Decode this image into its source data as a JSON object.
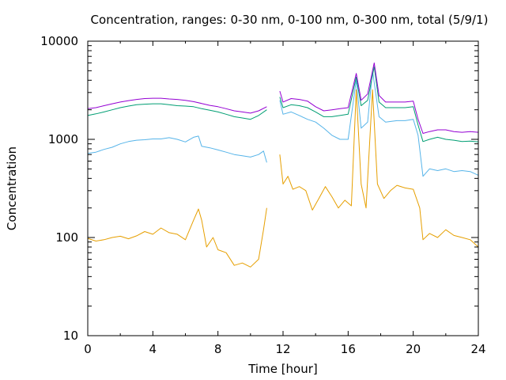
{
  "chart_data": {
    "type": "line",
    "title": "Concentration, ranges: 0-30 nm, 0-100 nm, 0-300 nm, total (5/9/1)",
    "xlabel": "Time [hour]",
    "ylabel": "Concentration",
    "xlim": [
      0,
      24
    ],
    "ylim": [
      10,
      10000
    ],
    "yscale": "log",
    "grid": false,
    "legend": "none",
    "x_ticks": [
      0,
      4,
      8,
      12,
      16,
      20,
      24
    ],
    "x_tick_labels": [
      "0",
      "4",
      "8",
      "12",
      "16",
      "20",
      "24"
    ],
    "y_ticks": [
      10,
      100,
      1000,
      10000
    ],
    "y_tick_labels": [
      "10",
      "100",
      "1000",
      "10000"
    ],
    "series": [
      {
        "color": "#e69f00",
        "segments": [
          [
            [
              0,
              98
            ],
            [
              0.5,
              92
            ],
            [
              1,
              95
            ],
            [
              1.5,
              100
            ],
            [
              2,
              103
            ],
            [
              2.5,
              97
            ],
            [
              3,
              104
            ],
            [
              3.5,
              115
            ],
            [
              4,
              108
            ],
            [
              4.5,
              125
            ],
            [
              5,
              112
            ],
            [
              5.5,
              108
            ],
            [
              6,
              95
            ],
            [
              6.5,
              150
            ],
            [
              6.8,
              195
            ],
            [
              7,
              150
            ],
            [
              7.3,
              80
            ],
            [
              7.7,
              100
            ],
            [
              8,
              75
            ],
            [
              8.5,
              70
            ],
            [
              9,
              52
            ],
            [
              9.5,
              55
            ],
            [
              10,
              50
            ],
            [
              10.5,
              60
            ],
            [
              10.8,
              120
            ],
            [
              11,
              200
            ]
          ],
          [
            [
              11.8,
              700
            ],
            [
              12,
              350
            ],
            [
              12.3,
              420
            ],
            [
              12.6,
              310
            ],
            [
              13,
              330
            ],
            [
              13.4,
              300
            ],
            [
              13.8,
              190
            ],
            [
              14.2,
              250
            ],
            [
              14.6,
              330
            ],
            [
              15,
              260
            ],
            [
              15.4,
              200
            ],
            [
              15.8,
              240
            ],
            [
              16.2,
              210
            ],
            [
              16.5,
              3200
            ],
            [
              16.8,
              350
            ],
            [
              17.1,
              200
            ],
            [
              17.5,
              3200
            ],
            [
              17.8,
              350
            ],
            [
              18.2,
              250
            ],
            [
              18.6,
              300
            ],
            [
              19,
              340
            ],
            [
              19.5,
              320
            ],
            [
              20,
              310
            ],
            [
              20.4,
              200
            ],
            [
              20.6,
              95
            ],
            [
              21,
              110
            ],
            [
              21.5,
              100
            ],
            [
              22,
              120
            ],
            [
              22.5,
              105
            ],
            [
              23,
              100
            ],
            [
              23.5,
              95
            ],
            [
              24,
              80
            ]
          ]
        ]
      },
      {
        "color": "#56b4e9",
        "segments": [
          [
            [
              0,
              720
            ],
            [
              0.5,
              740
            ],
            [
              1,
              790
            ],
            [
              1.5,
              830
            ],
            [
              2,
              900
            ],
            [
              2.5,
              950
            ],
            [
              3,
              980
            ],
            [
              3.5,
              990
            ],
            [
              4,
              1010
            ],
            [
              4.5,
              1010
            ],
            [
              5,
              1040
            ],
            [
              5.5,
              1000
            ],
            [
              6,
              940
            ],
            [
              6.5,
              1050
            ],
            [
              6.8,
              1080
            ],
            [
              7,
              850
            ],
            [
              7.5,
              820
            ],
            [
              8,
              780
            ],
            [
              8.5,
              740
            ],
            [
              9,
              700
            ],
            [
              9.5,
              680
            ],
            [
              10,
              660
            ],
            [
              10.5,
              700
            ],
            [
              10.8,
              760
            ],
            [
              11,
              580
            ]
          ],
          [
            [
              11.8,
              2500
            ],
            [
              12,
              1800
            ],
            [
              12.5,
              1900
            ],
            [
              13,
              1750
            ],
            [
              13.5,
              1600
            ],
            [
              14,
              1500
            ],
            [
              14.5,
              1300
            ],
            [
              15,
              1100
            ],
            [
              15.5,
              1000
            ],
            [
              16,
              1000
            ],
            [
              16.5,
              4000
            ],
            [
              16.8,
              1300
            ],
            [
              17.2,
              1500
            ],
            [
              17.5,
              5000
            ],
            [
              17.9,
              1700
            ],
            [
              18.3,
              1500
            ],
            [
              19,
              1550
            ],
            [
              19.5,
              1550
            ],
            [
              20,
              1600
            ],
            [
              20.3,
              1100
            ],
            [
              20.6,
              420
            ],
            [
              21,
              500
            ],
            [
              21.5,
              480
            ],
            [
              22,
              500
            ],
            [
              22.5,
              470
            ],
            [
              23,
              480
            ],
            [
              23.5,
              470
            ],
            [
              24,
              430
            ]
          ]
        ]
      },
      {
        "color": "#009e73",
        "segments": [
          [
            [
              0,
              1750
            ],
            [
              0.5,
              1820
            ],
            [
              1,
              1900
            ],
            [
              1.5,
              2000
            ],
            [
              2,
              2100
            ],
            [
              2.5,
              2180
            ],
            [
              3,
              2250
            ],
            [
              3.5,
              2280
            ],
            [
              4,
              2300
            ],
            [
              4.5,
              2300
            ],
            [
              5,
              2250
            ],
            [
              5.5,
              2200
            ],
            [
              6,
              2180
            ],
            [
              6.5,
              2150
            ],
            [
              7,
              2050
            ],
            [
              7.5,
              1980
            ],
            [
              8,
              1900
            ],
            [
              8.5,
              1800
            ],
            [
              9,
              1700
            ],
            [
              9.5,
              1650
            ],
            [
              10,
              1600
            ],
            [
              10.5,
              1750
            ],
            [
              11,
              2000
            ]
          ],
          [
            [
              11.8,
              2700
            ],
            [
              12,
              2100
            ],
            [
              12.5,
              2250
            ],
            [
              13,
              2200
            ],
            [
              13.5,
              2100
            ],
            [
              14,
              1900
            ],
            [
              14.5,
              1700
            ],
            [
              15,
              1700
            ],
            [
              15.5,
              1750
            ],
            [
              16,
              1800
            ],
            [
              16.5,
              4300
            ],
            [
              16.8,
              2200
            ],
            [
              17.2,
              2500
            ],
            [
              17.6,
              5500
            ],
            [
              17.9,
              2400
            ],
            [
              18.3,
              2100
            ],
            [
              19,
              2100
            ],
            [
              19.5,
              2100
            ],
            [
              20,
              2150
            ],
            [
              20.3,
              1400
            ],
            [
              20.6,
              950
            ],
            [
              21,
              1000
            ],
            [
              21.5,
              1050
            ],
            [
              22,
              1000
            ],
            [
              22.5,
              980
            ],
            [
              23,
              950
            ],
            [
              23.5,
              960
            ],
            [
              24,
              940
            ]
          ]
        ]
      },
      {
        "color": "#9400d3",
        "segments": [
          [
            [
              0,
              2050
            ],
            [
              0.5,
              2100
            ],
            [
              1,
              2200
            ],
            [
              1.5,
              2300
            ],
            [
              2,
              2400
            ],
            [
              2.5,
              2480
            ],
            [
              3,
              2550
            ],
            [
              3.5,
              2600
            ],
            [
              4,
              2620
            ],
            [
              4.5,
              2620
            ],
            [
              5,
              2580
            ],
            [
              5.5,
              2550
            ],
            [
              6,
              2500
            ],
            [
              6.5,
              2420
            ],
            [
              7,
              2320
            ],
            [
              7.5,
              2220
            ],
            [
              8,
              2150
            ],
            [
              8.5,
              2050
            ],
            [
              9,
              1950
            ],
            [
              9.5,
              1900
            ],
            [
              10,
              1850
            ],
            [
              10.5,
              1950
            ],
            [
              11,
              2150
            ]
          ],
          [
            [
              11.8,
              3100
            ],
            [
              12,
              2400
            ],
            [
              12.5,
              2600
            ],
            [
              13,
              2550
            ],
            [
              13.5,
              2450
            ],
            [
              14,
              2150
            ],
            [
              14.5,
              1950
            ],
            [
              15,
              2000
            ],
            [
              15.5,
              2050
            ],
            [
              16,
              2100
            ],
            [
              16.5,
              4700
            ],
            [
              16.8,
              2500
            ],
            [
              17.2,
              2900
            ],
            [
              17.6,
              6000
            ],
            [
              17.9,
              2800
            ],
            [
              18.3,
              2400
            ],
            [
              19,
              2400
            ],
            [
              19.5,
              2400
            ],
            [
              20,
              2450
            ],
            [
              20.3,
              1600
            ],
            [
              20.6,
              1150
            ],
            [
              21,
              1200
            ],
            [
              21.5,
              1250
            ],
            [
              22,
              1250
            ],
            [
              22.5,
              1200
            ],
            [
              23,
              1180
            ],
            [
              23.5,
              1200
            ],
            [
              24,
              1180
            ]
          ]
        ]
      }
    ]
  }
}
